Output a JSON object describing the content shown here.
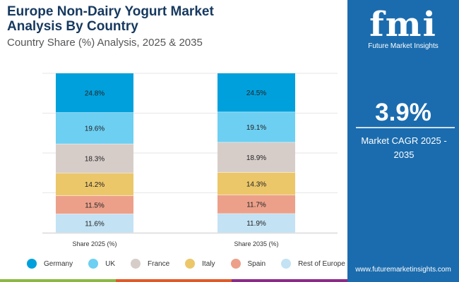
{
  "header": {
    "title_line1": "Europe Non-Dairy Yogurt Market",
    "title_line2": "Analysis By Country",
    "subtitle": "Country Share (%) Analysis, 2025 & 2035"
  },
  "panel": {
    "logo_text": "fmi",
    "logo_sub": "Future Market Insights",
    "cagr_value": "3.9%",
    "cagr_label": "Market CAGR 2025 - 2035",
    "url": "www.futuremarketinsights.com"
  },
  "chart_data": {
    "type": "bar",
    "stacked": true,
    "categories": [
      "Share 2025 (%)",
      "Share 2035 (%)"
    ],
    "series": [
      {
        "name": "Germany",
        "color": "#00a0dc",
        "values": [
          24.8,
          24.5
        ]
      },
      {
        "name": "UK",
        "color": "#6dcff2",
        "values": [
          19.6,
          19.1
        ]
      },
      {
        "name": "France",
        "color": "#d6cdc9",
        "values": [
          18.3,
          18.9
        ]
      },
      {
        "name": "Italy",
        "color": "#ecc76a",
        "values": [
          14.2,
          14.3
        ]
      },
      {
        "name": "Spain",
        "color": "#ec a08a",
        "values": [
          11.5,
          11.7
        ]
      },
      {
        "name": "Rest of Europe",
        "color": "#c3e2f4",
        "values": [
          11.6,
          11.9
        ]
      }
    ],
    "ylim": [
      0,
      100
    ],
    "grid": true,
    "legend": "bottom"
  },
  "stripe_colors": [
    "#8cb842",
    "#e05a28",
    "#8b2a88"
  ]
}
